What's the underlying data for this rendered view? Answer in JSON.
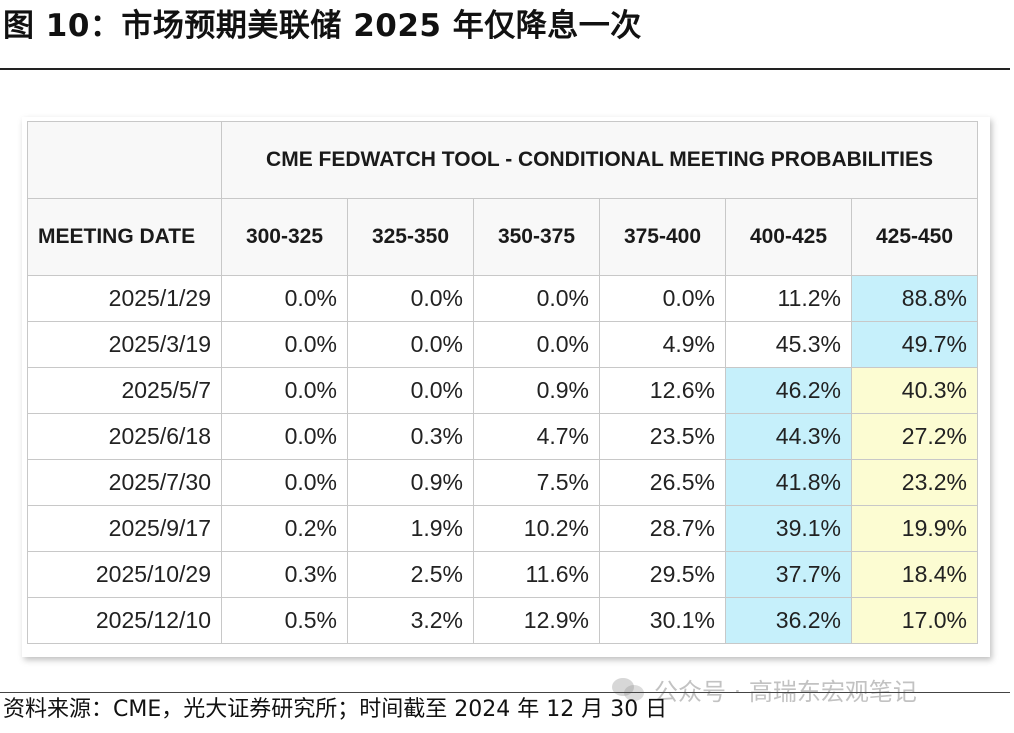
{
  "figure_title": "图 10：市场预期美联储 2025 年仅降息一次",
  "table": {
    "title": "CME FEDWATCH TOOL - CONDITIONAL MEETING PROBABILITIES",
    "date_header": "MEETING DATE",
    "columns": [
      "300-325",
      "325-350",
      "350-375",
      "375-400",
      "400-425",
      "425-450"
    ],
    "rows": [
      {
        "date": "2025/1/29",
        "values": [
          "0.0%",
          "0.0%",
          "0.0%",
          "0.0%",
          "11.2%",
          "88.8%"
        ],
        "highlight": [
          null,
          null,
          null,
          null,
          null,
          "blue"
        ]
      },
      {
        "date": "2025/3/19",
        "values": [
          "0.0%",
          "0.0%",
          "0.0%",
          "4.9%",
          "45.3%",
          "49.7%"
        ],
        "highlight": [
          null,
          null,
          null,
          null,
          null,
          "blue"
        ]
      },
      {
        "date": "2025/5/7",
        "values": [
          "0.0%",
          "0.0%",
          "0.9%",
          "12.6%",
          "46.2%",
          "40.3%"
        ],
        "highlight": [
          null,
          null,
          null,
          null,
          "blue",
          "yellow"
        ]
      },
      {
        "date": "2025/6/18",
        "values": [
          "0.0%",
          "0.3%",
          "4.7%",
          "23.5%",
          "44.3%",
          "27.2%"
        ],
        "highlight": [
          null,
          null,
          null,
          null,
          "blue",
          "yellow"
        ]
      },
      {
        "date": "2025/7/30",
        "values": [
          "0.0%",
          "0.9%",
          "7.5%",
          "26.5%",
          "41.8%",
          "23.2%"
        ],
        "highlight": [
          null,
          null,
          null,
          null,
          "blue",
          "yellow"
        ]
      },
      {
        "date": "2025/9/17",
        "values": [
          "0.2%",
          "1.9%",
          "10.2%",
          "28.7%",
          "39.1%",
          "19.9%"
        ],
        "highlight": [
          null,
          null,
          null,
          null,
          "blue",
          "yellow"
        ]
      },
      {
        "date": "2025/10/29",
        "values": [
          "0.3%",
          "2.5%",
          "11.6%",
          "29.5%",
          "37.7%",
          "18.4%"
        ],
        "highlight": [
          null,
          null,
          null,
          null,
          "blue",
          "yellow"
        ]
      },
      {
        "date": "2025/12/10",
        "values": [
          "0.5%",
          "3.2%",
          "12.9%",
          "30.1%",
          "36.2%",
          "17.0%"
        ],
        "highlight": [
          null,
          null,
          null,
          null,
          "blue",
          "yellow"
        ]
      }
    ]
  },
  "colors": {
    "highlight_blue": "#c6f0fb",
    "highlight_yellow": "#fcfcd2"
  },
  "source": "资料来源：CME，光大证券研究所；时间截至 2024 年 12 月 30 日",
  "watermark": {
    "icon": "wechat-icon",
    "text": "公众号 · 高瑞东宏观笔记"
  }
}
